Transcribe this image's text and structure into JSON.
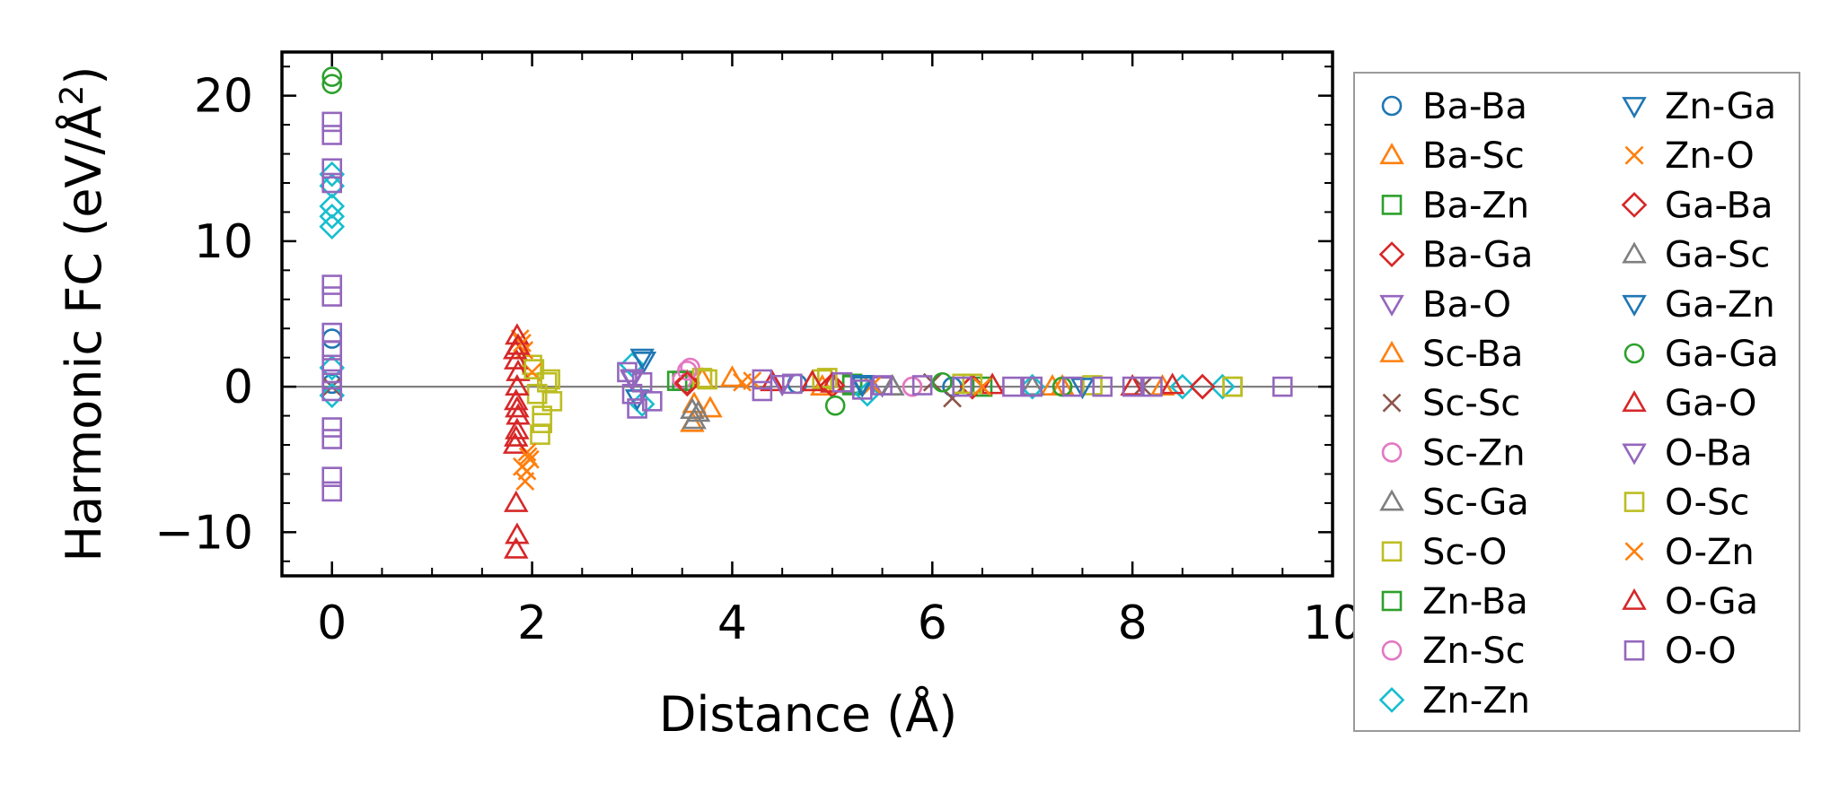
{
  "chart_data": {
    "type": "scatter",
    "title": "",
    "xlabel": "Distance (Å)",
    "ylabel_main": "Harmonic FC (eV/Å",
    "ylabel_sup": "2",
    "ylabel_end": ")",
    "xlim": [
      -0.5,
      10
    ],
    "ylim": [
      -13,
      23
    ],
    "xticks": [
      0,
      2,
      4,
      6,
      8,
      10
    ],
    "xtick_labels": [
      "0",
      "2",
      "4",
      "6",
      "8",
      "10"
    ],
    "yticks": [
      -10,
      0,
      10,
      20
    ],
    "ytick_labels": [
      "−10",
      "0",
      "10",
      "20"
    ],
    "legend_position": "right outside",
    "zero_line": true,
    "series": [
      {
        "name": "Ba-Ba",
        "marker": "circle",
        "color": "#1f77b4",
        "filled": false,
        "points": [
          [
            0,
            3.3
          ],
          [
            0,
            0.2
          ],
          [
            4.65,
            0.2
          ],
          [
            6.2,
            0.0
          ]
        ]
      },
      {
        "name": "Ba-Sc",
        "marker": "triangle-up",
        "color": "#ff7f0e",
        "filled": false,
        "points": [
          [
            3.6,
            -2.5
          ],
          [
            3.78,
            -1.5
          ],
          [
            3.7,
            0.5
          ],
          [
            4.8,
            0.3
          ],
          [
            7.3,
            0.0
          ],
          [
            8.3,
            0.0
          ]
        ]
      },
      {
        "name": "Ba-Zn",
        "marker": "square",
        "color": "#2ca02c",
        "filled": false,
        "points": [
          [
            3.5,
            0.4
          ],
          [
            5.2,
            0.2
          ],
          [
            6.5,
            0.0
          ]
        ]
      },
      {
        "name": "Ba-Ga",
        "marker": "diamond",
        "color": "#d62728",
        "filled": false,
        "points": [
          [
            3.55,
            0.3
          ],
          [
            5.0,
            0.1
          ],
          [
            6.4,
            0.0
          ],
          [
            8.7,
            0.0
          ]
        ]
      },
      {
        "name": "Ba-O",
        "marker": "triangle-down",
        "color": "#9467bd",
        "filled": false,
        "points": [
          [
            3.0,
            0.5
          ],
          [
            4.5,
            0.2
          ],
          [
            5.5,
            0.1
          ]
        ]
      },
      {
        "name": "Sc-Ba",
        "marker": "triangle-up",
        "color": "#ff7f0e",
        "filled": false,
        "points": [
          [
            3.62,
            -1.2
          ],
          [
            4.0,
            0.6
          ],
          [
            4.9,
            0.0
          ],
          [
            7.2,
            0.0
          ]
        ]
      },
      {
        "name": "Sc-Sc",
        "marker": "x",
        "color": "#8c564b",
        "filled": false,
        "points": [
          [
            0,
            0.0
          ],
          [
            6.2,
            -0.8
          ],
          [
            6.0,
            0.3
          ],
          [
            8.1,
            0.0
          ]
        ]
      },
      {
        "name": "Sc-Zn",
        "marker": "circle",
        "color": "#e377c2",
        "filled": false,
        "points": [
          [
            3.58,
            1.3
          ],
          [
            3.5,
            0.5
          ],
          [
            5.8,
            0.0
          ]
        ]
      },
      {
        "name": "Sc-Ga",
        "marker": "triangle-up",
        "color": "#7f7f7f",
        "filled": false,
        "points": [
          [
            3.62,
            -2.3
          ],
          [
            3.66,
            -1.8
          ],
          [
            5.6,
            0.0
          ],
          [
            7.0,
            0.0
          ]
        ]
      },
      {
        "name": "Sc-O",
        "marker": "square",
        "color": "#bcbd22",
        "filled": false,
        "points": [
          [
            2.0,
            1.5
          ],
          [
            2.05,
            -0.5
          ],
          [
            2.08,
            -3.3
          ],
          [
            2.1,
            -2.0
          ],
          [
            2.15,
            0.3
          ],
          [
            2.2,
            -1.0
          ],
          [
            3.7,
            0.6
          ],
          [
            4.9,
            0.5
          ],
          [
            6.3,
            0.2
          ],
          [
            7.6,
            0.1
          ],
          [
            9.0,
            0.0
          ]
        ]
      },
      {
        "name": "Zn-Ba",
        "marker": "square",
        "color": "#2ca02c",
        "filled": false,
        "points": [
          [
            3.45,
            0.4
          ],
          [
            5.2,
            0.1
          ]
        ]
      },
      {
        "name": "Zn-Sc",
        "marker": "circle",
        "color": "#e377c2",
        "filled": false,
        "points": [
          [
            3.55,
            1.1
          ],
          [
            5.8,
            0.0
          ]
        ]
      },
      {
        "name": "Zn-Zn",
        "marker": "diamond",
        "color": "#17becf",
        "filled": false,
        "points": [
          [
            0,
            14.6
          ],
          [
            0,
            13.8
          ],
          [
            0,
            12.4
          ],
          [
            0,
            11.7
          ],
          [
            0,
            11.0
          ],
          [
            0,
            1.3
          ],
          [
            0,
            -0.6
          ],
          [
            3.0,
            1.5
          ],
          [
            3.1,
            -1.2
          ],
          [
            5.35,
            -0.5
          ],
          [
            7.0,
            0.0
          ],
          [
            8.5,
            0.0
          ],
          [
            8.9,
            0.0
          ]
        ]
      },
      {
        "name": "Zn-Ga",
        "marker": "triangle-down",
        "color": "#1f77b4",
        "filled": false,
        "points": [
          [
            3.1,
            2.0
          ],
          [
            3.05,
            -0.8
          ],
          [
            5.3,
            0.2
          ],
          [
            7.5,
            0.0
          ]
        ]
      },
      {
        "name": "Zn-O",
        "marker": "x",
        "color": "#ff7f0e",
        "filled": false,
        "points": [
          [
            1.88,
            3.3
          ],
          [
            1.92,
            2.5
          ],
          [
            1.95,
            -4.5
          ],
          [
            1.9,
            -5.5
          ],
          [
            1.93,
            -6.5
          ],
          [
            1.98,
            -5.0
          ],
          [
            2.0,
            1.0
          ],
          [
            4.2,
            0.4
          ],
          [
            5.4,
            0.1
          ],
          [
            6.5,
            0.0
          ]
        ]
      },
      {
        "name": "Ga-Ba",
        "marker": "diamond",
        "color": "#d62728",
        "filled": false,
        "points": [
          [
            3.55,
            0.2
          ],
          [
            5.0,
            0.1
          ],
          [
            6.4,
            0.0
          ],
          [
            8.7,
            0.0
          ]
        ]
      },
      {
        "name": "Ga-Sc",
        "marker": "triangle-up",
        "color": "#7f7f7f",
        "filled": false,
        "points": [
          [
            3.6,
            -1.6
          ],
          [
            5.6,
            0.0
          ]
        ]
      },
      {
        "name": "Ga-Zn",
        "marker": "triangle-down",
        "color": "#1f77b4",
        "filled": false,
        "points": [
          [
            3.12,
            1.8
          ],
          [
            5.3,
            0.1
          ]
        ]
      },
      {
        "name": "Ga-Ga",
        "marker": "circle",
        "color": "#2ca02c",
        "filled": false,
        "points": [
          [
            0,
            21.3
          ],
          [
            0,
            20.8
          ],
          [
            5.03,
            -1.3
          ],
          [
            6.1,
            0.3
          ],
          [
            7.3,
            0.0
          ]
        ]
      },
      {
        "name": "Ga-O",
        "marker": "triangle-up",
        "color": "#d62728",
        "filled": false,
        "points": [
          [
            1.85,
            3.5
          ],
          [
            1.83,
            2.5
          ],
          [
            1.84,
            1.8
          ],
          [
            1.86,
            1.0
          ],
          [
            1.85,
            0.0
          ],
          [
            1.84,
            -1.0
          ],
          [
            1.86,
            -2.0
          ],
          [
            1.85,
            -3.0
          ],
          [
            1.83,
            -4.0
          ],
          [
            1.84,
            -8.0
          ],
          [
            1.85,
            -10.2
          ],
          [
            1.84,
            -11.2
          ],
          [
            4.4,
            0.3
          ],
          [
            5.0,
            0.2
          ],
          [
            6.6,
            0.1
          ],
          [
            8.4,
            0.1
          ]
        ]
      },
      {
        "name": "O-Ba",
        "marker": "triangle-down",
        "color": "#9467bd",
        "filled": false,
        "points": [
          [
            3.0,
            0.6
          ],
          [
            4.5,
            0.2
          ]
        ]
      },
      {
        "name": "O-Sc",
        "marker": "square",
        "color": "#bcbd22",
        "filled": false,
        "points": [
          [
            2.02,
            1.2
          ],
          [
            2.1,
            -2.5
          ],
          [
            2.18,
            0.5
          ],
          [
            3.75,
            0.5
          ],
          [
            4.95,
            0.6
          ],
          [
            6.4,
            0.2
          ],
          [
            9.0,
            0.0
          ]
        ]
      },
      {
        "name": "O-Zn",
        "marker": "x",
        "color": "#ff7f0e",
        "filled": false,
        "points": [
          [
            1.9,
            3.0
          ],
          [
            1.95,
            -5.8
          ],
          [
            1.96,
            -4.8
          ],
          [
            4.1,
            0.3
          ],
          [
            6.5,
            0.0
          ]
        ]
      },
      {
        "name": "O-Ga",
        "marker": "triangle-up",
        "color": "#d62728",
        "filled": false,
        "points": [
          [
            1.86,
            2.8
          ],
          [
            1.85,
            -1.5
          ],
          [
            1.84,
            -3.5
          ],
          [
            4.8,
            0.3
          ],
          [
            8.0,
            0.0
          ]
        ]
      },
      {
        "name": "O-O",
        "marker": "square",
        "color": "#9467bd",
        "filled": false,
        "points": [
          [
            0,
            18.2
          ],
          [
            0,
            17.3
          ],
          [
            0,
            15.0
          ],
          [
            0,
            14.0
          ],
          [
            0,
            7.0
          ],
          [
            0,
            6.2
          ],
          [
            0,
            3.7
          ],
          [
            0,
            2.5
          ],
          [
            0,
            1.5
          ],
          [
            0,
            0.5
          ],
          [
            0,
            -0.3
          ],
          [
            0,
            -2.8
          ],
          [
            0,
            -3.6
          ],
          [
            0,
            -6.2
          ],
          [
            0,
            -7.2
          ],
          [
            2.95,
            1.0
          ],
          [
            3.0,
            -0.5
          ],
          [
            3.05,
            -1.5
          ],
          [
            3.1,
            0.3
          ],
          [
            3.2,
            -1.0
          ],
          [
            4.3,
            0.5
          ],
          [
            4.3,
            -0.3
          ],
          [
            4.6,
            0.2
          ],
          [
            5.1,
            0.3
          ],
          [
            5.3,
            -0.2
          ],
          [
            5.5,
            0.1
          ],
          [
            5.9,
            0.1
          ],
          [
            6.3,
            0.0
          ],
          [
            6.8,
            0.0
          ],
          [
            7.0,
            0.0
          ],
          [
            7.4,
            0.0
          ],
          [
            7.7,
            0.0
          ],
          [
            8.0,
            0.0
          ],
          [
            8.2,
            0.0
          ],
          [
            9.5,
            0.0
          ]
        ]
      }
    ]
  }
}
